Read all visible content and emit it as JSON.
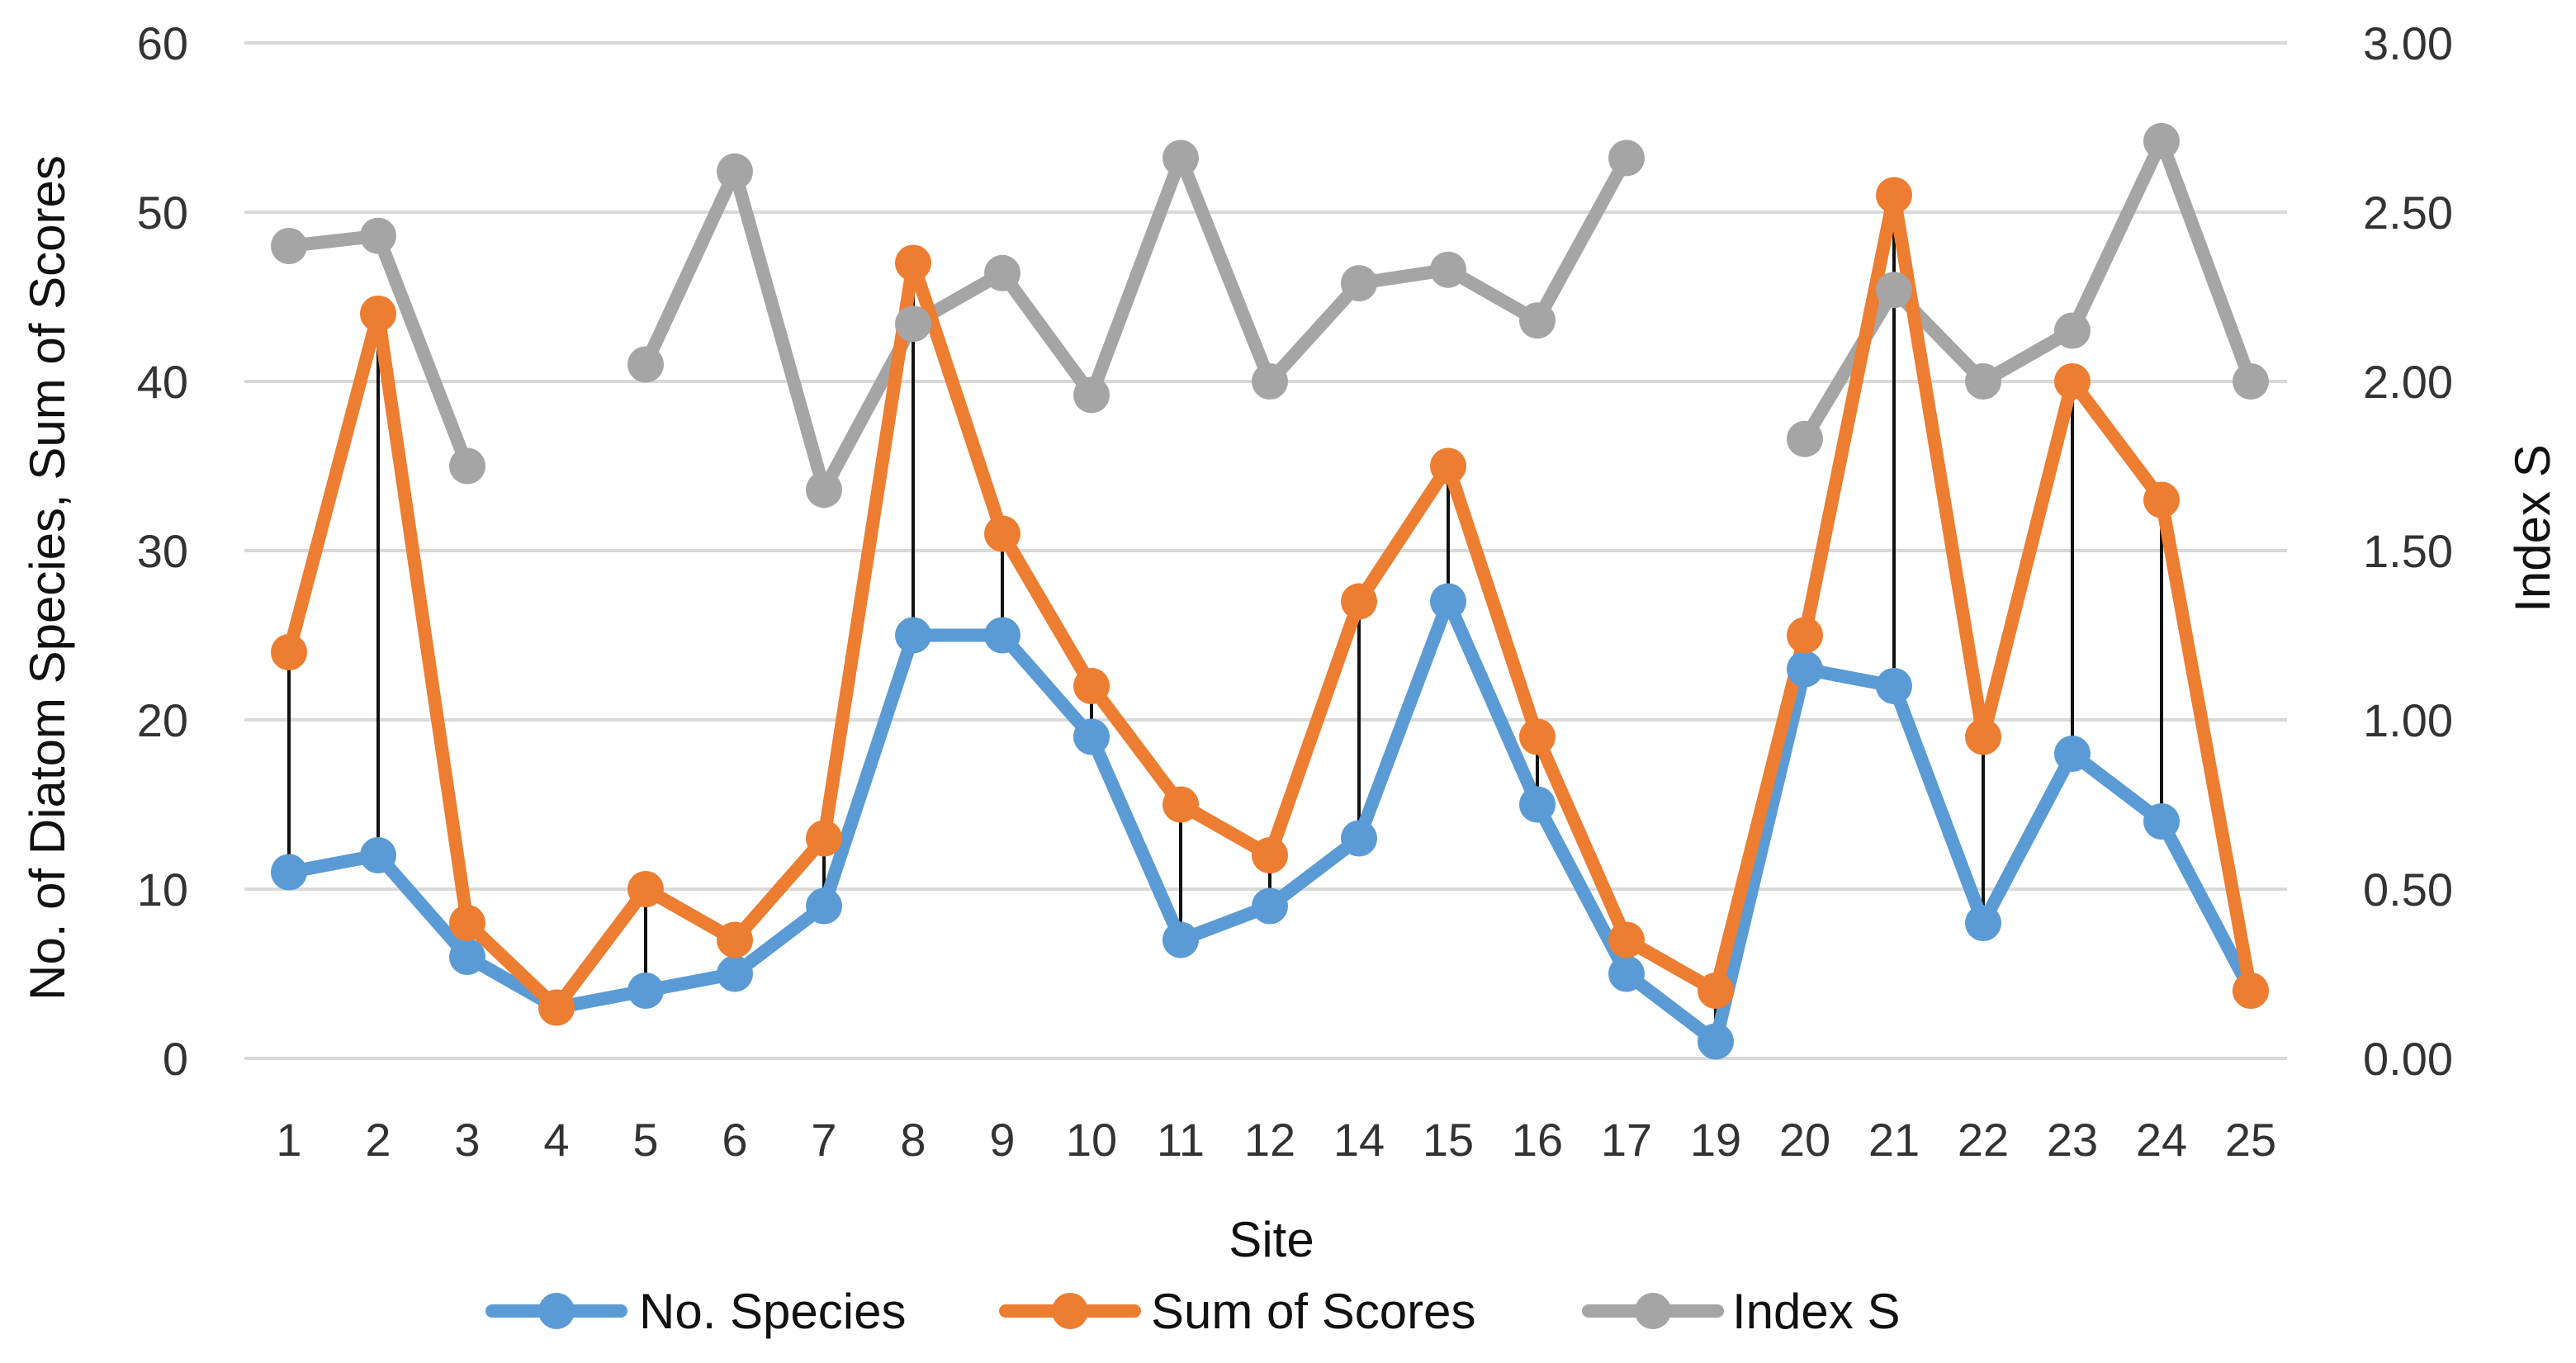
{
  "chart_data": {
    "type": "line",
    "title": "",
    "xlabel": "Site",
    "ylabel": "No. of Diatom Species, Sum of Scores",
    "y2label": "Index S",
    "ylim": [
      0,
      60
    ],
    "y2lim": [
      0,
      3
    ],
    "yticks": [
      "0",
      "10",
      "20",
      "30",
      "40",
      "50",
      "60"
    ],
    "y2ticks": [
      "0.00",
      "0.50",
      "1.00",
      "1.50",
      "2.00",
      "2.50",
      "3.00"
    ],
    "categories": [
      "1",
      "2",
      "3",
      "4",
      "5",
      "6",
      "7",
      "8",
      "9",
      "10",
      "11",
      "12",
      "14",
      "15",
      "16",
      "17",
      "19",
      "20",
      "21",
      "22",
      "23",
      "24",
      "25"
    ],
    "grid": true,
    "legend_position": "bottom",
    "high_low_lines": true,
    "series": [
      {
        "name": "No. Species",
        "axis": "left",
        "color": "#5b9bd5",
        "values": [
          11,
          12,
          6,
          3,
          4,
          5,
          9,
          25,
          25,
          19,
          7,
          9,
          13,
          27,
          15,
          5,
          1,
          23,
          22,
          8,
          18,
          14,
          4
        ]
      },
      {
        "name": "Sum of Scores",
        "axis": "left",
        "color": "#ed7d31",
        "values": [
          24,
          44,
          8,
          3,
          10,
          7,
          13,
          47,
          31,
          22,
          15,
          12,
          27,
          35,
          19,
          7,
          4,
          25,
          51,
          19,
          40,
          33,
          4
        ]
      },
      {
        "name": "Index S",
        "axis": "right",
        "color": "#a5a5a5",
        "values": [
          2.4,
          2.43,
          1.75,
          null,
          2.05,
          2.62,
          1.68,
          2.17,
          2.32,
          1.96,
          2.66,
          2.0,
          2.29,
          2.33,
          2.18,
          2.66,
          null,
          1.83,
          2.27,
          2.0,
          2.15,
          2.71,
          2.0
        ]
      }
    ]
  }
}
